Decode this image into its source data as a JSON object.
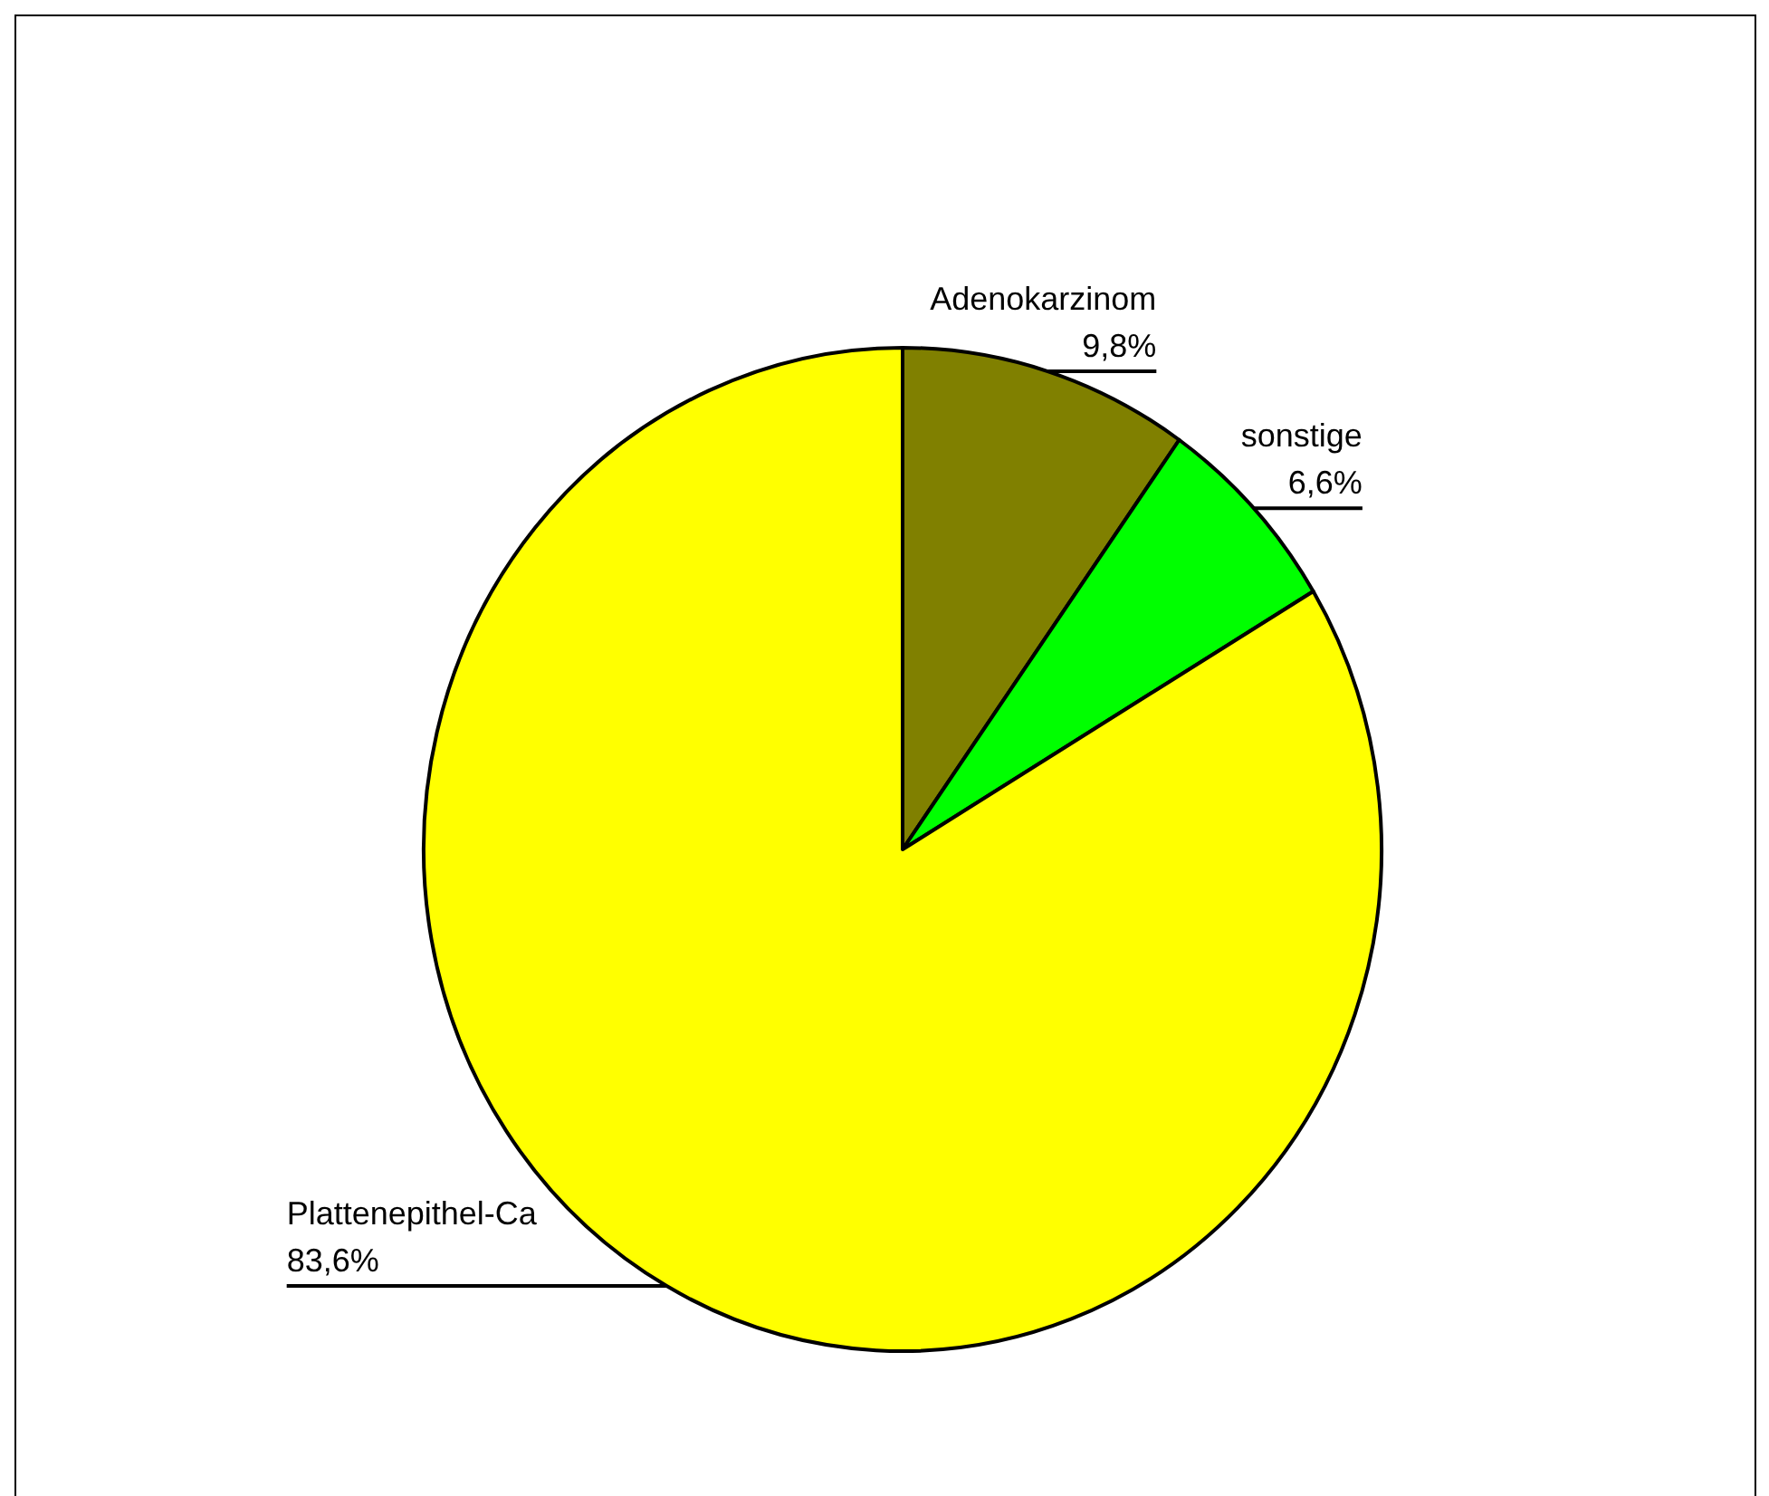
{
  "chart_data": {
    "type": "pie",
    "categories": [
      "Adenokarzinom",
      "sonstige",
      "Plattenepithel-Ca"
    ],
    "values": [
      9.8,
      6.6,
      83.6
    ],
    "colors": [
      "#808000",
      "#00ff00",
      "#ffff00"
    ],
    "value_labels": [
      "9,8%",
      "6,6%",
      "83,6%"
    ]
  }
}
